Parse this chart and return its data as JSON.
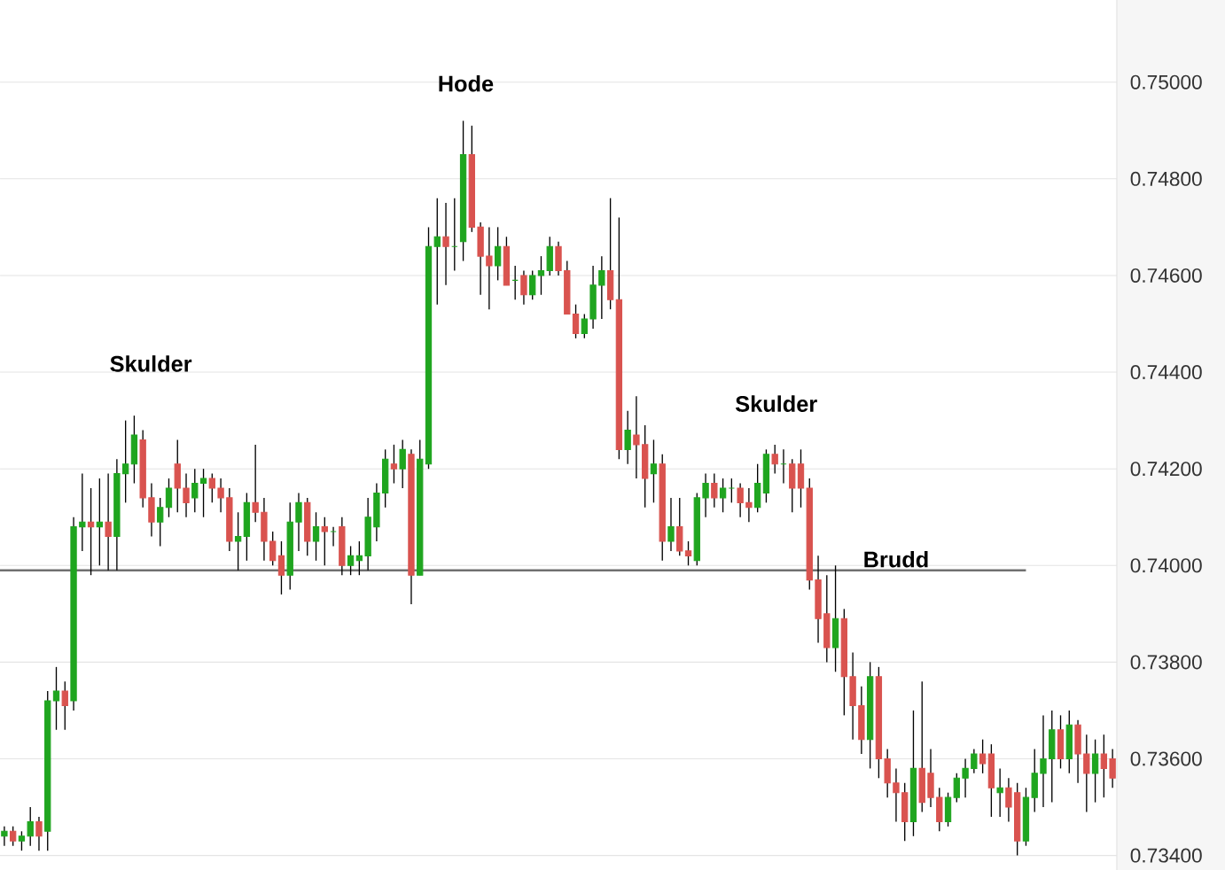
{
  "chart_data": {
    "type": "candlestick",
    "categories": [
      null,
      null,
      null,
      null,
      null,
      null,
      null,
      null,
      null,
      null,
      null,
      null,
      null,
      null,
      null,
      null,
      null,
      null,
      null,
      null,
      null,
      null,
      null,
      null,
      null,
      null,
      null,
      null,
      null,
      null,
      null,
      null,
      null,
      null,
      null,
      null,
      null,
      null,
      null,
      null,
      null,
      null,
      null,
      null,
      null,
      null,
      null,
      null,
      null,
      null,
      null,
      null,
      null,
      null,
      null,
      null,
      null,
      null,
      null,
      null,
      null,
      null,
      null,
      null,
      null,
      null,
      null,
      null,
      null,
      null,
      null,
      null,
      null,
      null,
      null,
      null,
      null,
      null,
      null,
      null,
      null,
      null,
      null,
      null,
      null,
      null,
      null,
      null,
      null,
      null,
      null,
      null,
      null,
      null,
      null,
      null,
      null,
      null,
      null,
      null,
      null,
      null,
      null,
      null,
      null,
      null,
      null,
      null,
      null,
      null,
      null,
      null,
      null,
      null,
      null,
      null,
      null,
      null,
      null,
      null,
      null,
      null,
      null,
      null,
      null,
      null,
      null,
      null,
      null
    ],
    "ohlc": [
      [
        0.7344,
        0.7346,
        0.7342,
        0.7345
      ],
      [
        0.7345,
        0.7346,
        0.7342,
        0.7343
      ],
      [
        0.7343,
        0.7345,
        0.7341,
        0.7344
      ],
      [
        0.7344,
        0.735,
        0.7342,
        0.7347
      ],
      [
        0.7347,
        0.7348,
        0.7341,
        0.7344
      ],
      [
        0.7345,
        0.7374,
        0.7341,
        0.7372
      ],
      [
        0.7372,
        0.7379,
        0.7366,
        0.7374
      ],
      [
        0.7374,
        0.7376,
        0.7366,
        0.7371
      ],
      [
        0.7372,
        0.741,
        0.737,
        0.7408
      ],
      [
        0.7408,
        0.7419,
        0.7403,
        0.7409
      ],
      [
        0.7409,
        0.7416,
        0.7398,
        0.7408
      ],
      [
        0.7408,
        0.7418,
        0.74,
        0.7409
      ],
      [
        0.7409,
        0.7419,
        0.7399,
        0.7406
      ],
      [
        0.7406,
        0.7422,
        0.7399,
        0.7419
      ],
      [
        0.7419,
        0.743,
        0.7413,
        0.7421
      ],
      [
        0.7421,
        0.7431,
        0.7417,
        0.7427
      ],
      [
        0.7426,
        0.7428,
        0.7412,
        0.7414
      ],
      [
        0.7414,
        0.7417,
        0.7406,
        0.7409
      ],
      [
        0.7409,
        0.7414,
        0.7404,
        0.7412
      ],
      [
        0.7412,
        0.7418,
        0.741,
        0.7416
      ],
      [
        0.7421,
        0.7426,
        0.7411,
        0.7416
      ],
      [
        0.7416,
        0.7419,
        0.741,
        0.7413
      ],
      [
        0.7414,
        0.742,
        0.7411,
        0.7417
      ],
      [
        0.7417,
        0.742,
        0.741,
        0.7418
      ],
      [
        0.7418,
        0.7419,
        0.7413,
        0.7416
      ],
      [
        0.7416,
        0.7418,
        0.7411,
        0.7414
      ],
      [
        0.7414,
        0.7416,
        0.7403,
        0.7405
      ],
      [
        0.7405,
        0.7411,
        0.7399,
        0.7406
      ],
      [
        0.7406,
        0.7415,
        0.7401,
        0.7413
      ],
      [
        0.7413,
        0.7425,
        0.7409,
        0.7411
      ],
      [
        0.7411,
        0.7414,
        0.7401,
        0.7405
      ],
      [
        0.7405,
        0.7407,
        0.74,
        0.7401
      ],
      [
        0.7402,
        0.7405,
        0.7394,
        0.7398
      ],
      [
        0.7398,
        0.7413,
        0.7395,
        0.7409
      ],
      [
        0.7409,
        0.7415,
        0.7403,
        0.7413
      ],
      [
        0.7413,
        0.7414,
        0.7402,
        0.7405
      ],
      [
        0.7405,
        0.7411,
        0.7401,
        0.7408
      ],
      [
        0.7408,
        0.741,
        0.74,
        0.7407
      ],
      [
        0.7407,
        0.7408,
        0.7404,
        0.7407
      ],
      [
        0.7408,
        0.741,
        0.7398,
        0.74
      ],
      [
        0.74,
        0.7404,
        0.7398,
        0.7402
      ],
      [
        0.7401,
        0.7405,
        0.7398,
        0.7402
      ],
      [
        0.7402,
        0.7414,
        0.7399,
        0.741
      ],
      [
        0.7408,
        0.7417,
        0.7405,
        0.7415
      ],
      [
        0.7415,
        0.7424,
        0.7412,
        0.7422
      ],
      [
        0.7421,
        0.7425,
        0.7417,
        0.742
      ],
      [
        0.742,
        0.7426,
        0.7416,
        0.7424
      ],
      [
        0.7423,
        0.7424,
        0.7392,
        0.7398
      ],
      [
        0.7398,
        0.7426,
        0.7398,
        0.7422
      ],
      [
        0.7421,
        0.747,
        0.742,
        0.7466
      ],
      [
        0.7466,
        0.7476,
        0.7454,
        0.7468
      ],
      [
        0.7468,
        0.7475,
        0.7458,
        0.7466
      ],
      [
        0.7466,
        0.7476,
        0.7461,
        0.7466
      ],
      [
        0.7467,
        0.7492,
        0.7463,
        0.7485
      ],
      [
        0.7485,
        0.7491,
        0.7469,
        0.747
      ],
      [
        0.747,
        0.7471,
        0.7456,
        0.7464
      ],
      [
        0.7464,
        0.747,
        0.7453,
        0.7462
      ],
      [
        0.7462,
        0.747,
        0.7459,
        0.7466
      ],
      [
        0.7466,
        0.7468,
        0.7458,
        0.7458
      ],
      [
        0.7459,
        0.7462,
        0.7455,
        0.7459
      ],
      [
        0.746,
        0.7461,
        0.7454,
        0.7456
      ],
      [
        0.7456,
        0.7461,
        0.7455,
        0.746
      ],
      [
        0.746,
        0.7464,
        0.7456,
        0.7461
      ],
      [
        0.7461,
        0.7468,
        0.746,
        0.7466
      ],
      [
        0.7466,
        0.7467,
        0.746,
        0.7461
      ],
      [
        0.7461,
        0.7463,
        0.7452,
        0.7452
      ],
      [
        0.7452,
        0.7454,
        0.7447,
        0.7448
      ],
      [
        0.7448,
        0.7452,
        0.7447,
        0.7451
      ],
      [
        0.7451,
        0.7462,
        0.7449,
        0.7458
      ],
      [
        0.7458,
        0.7464,
        0.7451,
        0.7461
      ],
      [
        0.7461,
        0.7476,
        0.7453,
        0.7455
      ],
      [
        0.7455,
        0.7472,
        0.7422,
        0.7424
      ],
      [
        0.7424,
        0.7432,
        0.7421,
        0.7428
      ],
      [
        0.7427,
        0.7435,
        0.7418,
        0.7425
      ],
      [
        0.7425,
        0.7429,
        0.7412,
        0.7418
      ],
      [
        0.7419,
        0.7426,
        0.7413,
        0.7421
      ],
      [
        0.7421,
        0.7423,
        0.7401,
        0.7405
      ],
      [
        0.7405,
        0.7414,
        0.7403,
        0.7408
      ],
      [
        0.7408,
        0.7414,
        0.7402,
        0.7403
      ],
      [
        0.7403,
        0.7405,
        0.74,
        0.7402
      ],
      [
        0.7401,
        0.7415,
        0.74,
        0.7414
      ],
      [
        0.7414,
        0.7419,
        0.741,
        0.7417
      ],
      [
        0.7417,
        0.7419,
        0.7412,
        0.7414
      ],
      [
        0.7414,
        0.7418,
        0.7411,
        0.7416
      ],
      [
        0.7416,
        0.7418,
        0.7413,
        0.7416
      ],
      [
        0.7416,
        0.7417,
        0.741,
        0.7413
      ],
      [
        0.7413,
        0.7416,
        0.7409,
        0.7412
      ],
      [
        0.7412,
        0.7421,
        0.7411,
        0.7417
      ],
      [
        0.7415,
        0.7424,
        0.7413,
        0.7423
      ],
      [
        0.7423,
        0.7425,
        0.7419,
        0.7421
      ],
      [
        0.7421,
        0.7424,
        0.7417,
        0.7421
      ],
      [
        0.7421,
        0.7422,
        0.7411,
        0.7416
      ],
      [
        0.7421,
        0.7424,
        0.7412,
        0.7416
      ],
      [
        0.7416,
        0.7418,
        0.7395,
        0.7397
      ],
      [
        0.7397,
        0.7402,
        0.7384,
        0.7389
      ],
      [
        0.739,
        0.7398,
        0.738,
        0.7383
      ],
      [
        0.7383,
        0.74,
        0.7378,
        0.7389
      ],
      [
        0.7389,
        0.7391,
        0.7369,
        0.7377
      ],
      [
        0.7377,
        0.7382,
        0.7364,
        0.7371
      ],
      [
        0.7371,
        0.7375,
        0.7361,
        0.7364
      ],
      [
        0.7364,
        0.738,
        0.7358,
        0.7377
      ],
      [
        0.7377,
        0.7379,
        0.7356,
        0.736
      ],
      [
        0.736,
        0.7362,
        0.7352,
        0.7355
      ],
      [
        0.7355,
        0.7358,
        0.7347,
        0.7353
      ],
      [
        0.7353,
        0.7355,
        0.7343,
        0.7347
      ],
      [
        0.7347,
        0.737,
        0.7344,
        0.7358
      ],
      [
        0.7358,
        0.7376,
        0.7349,
        0.7351
      ],
      [
        0.7357,
        0.7362,
        0.735,
        0.7352
      ],
      [
        0.7352,
        0.7354,
        0.7345,
        0.7347
      ],
      [
        0.7347,
        0.7353,
        0.7346,
        0.7352
      ],
      [
        0.7352,
        0.7357,
        0.7351,
        0.7356
      ],
      [
        0.7356,
        0.736,
        0.7352,
        0.7358
      ],
      [
        0.7358,
        0.7362,
        0.7357,
        0.7361
      ],
      [
        0.7361,
        0.7364,
        0.7357,
        0.7359
      ],
      [
        0.7361,
        0.7363,
        0.7348,
        0.7354
      ],
      [
        0.7353,
        0.7358,
        0.7348,
        0.7354
      ],
      [
        0.7354,
        0.7356,
        0.7347,
        0.735
      ],
      [
        0.7353,
        0.7355,
        0.734,
        0.7343
      ],
      [
        0.7343,
        0.7354,
        0.7342,
        0.7352
      ],
      [
        0.7352,
        0.7362,
        0.7349,
        0.7357
      ],
      [
        0.7357,
        0.7369,
        0.735,
        0.736
      ],
      [
        0.736,
        0.737,
        0.7351,
        0.7366
      ],
      [
        0.7366,
        0.7369,
        0.7358,
        0.736
      ],
      [
        0.736,
        0.737,
        0.7357,
        0.7367
      ],
      [
        0.7367,
        0.7368,
        0.7355,
        0.7361
      ],
      [
        0.7361,
        0.7365,
        0.7349,
        0.7357
      ],
      [
        0.7357,
        0.7364,
        0.7351,
        0.7361
      ],
      [
        0.7361,
        0.7365,
        0.7352,
        0.7358
      ],
      [
        0.736,
        0.7362,
        0.7354,
        0.7356
      ]
    ],
    "ylim": [
      0.7337,
      0.7517
    ],
    "yticks": [
      {
        "value": 0.734,
        "label": "0.73400"
      },
      {
        "value": 0.736,
        "label": "0.73600"
      },
      {
        "value": 0.738,
        "label": "0.73800"
      },
      {
        "value": 0.74,
        "label": "0.74000"
      },
      {
        "value": 0.742,
        "label": "0.74200"
      },
      {
        "value": 0.744,
        "label": "0.74400"
      },
      {
        "value": 0.746,
        "label": "0.74600"
      },
      {
        "value": 0.748,
        "label": "0.74800"
      },
      {
        "value": 0.75,
        "label": "0.75000"
      }
    ],
    "grid": "y",
    "ref_lines": [
      {
        "axis": "y",
        "value": 0.7399,
        "label": "Brudd",
        "color": "#707070"
      }
    ],
    "annotations": [
      "Hode",
      "Skulder",
      "Skulder"
    ]
  }
}
